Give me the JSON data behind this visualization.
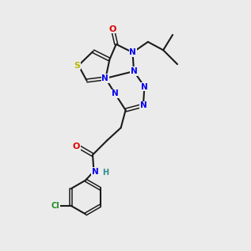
{
  "bg": "#ebebeb",
  "bond_color": "#1a1a1a",
  "S_color": "#b8b800",
  "N_color": "#0000ee",
  "O_color": "#dd0000",
  "Cl_color": "#228B22",
  "H_color": "#2e8b8b",
  "C_color": "#1a1a1a",
  "lw": 1.5,
  "lw2": 1.1
}
